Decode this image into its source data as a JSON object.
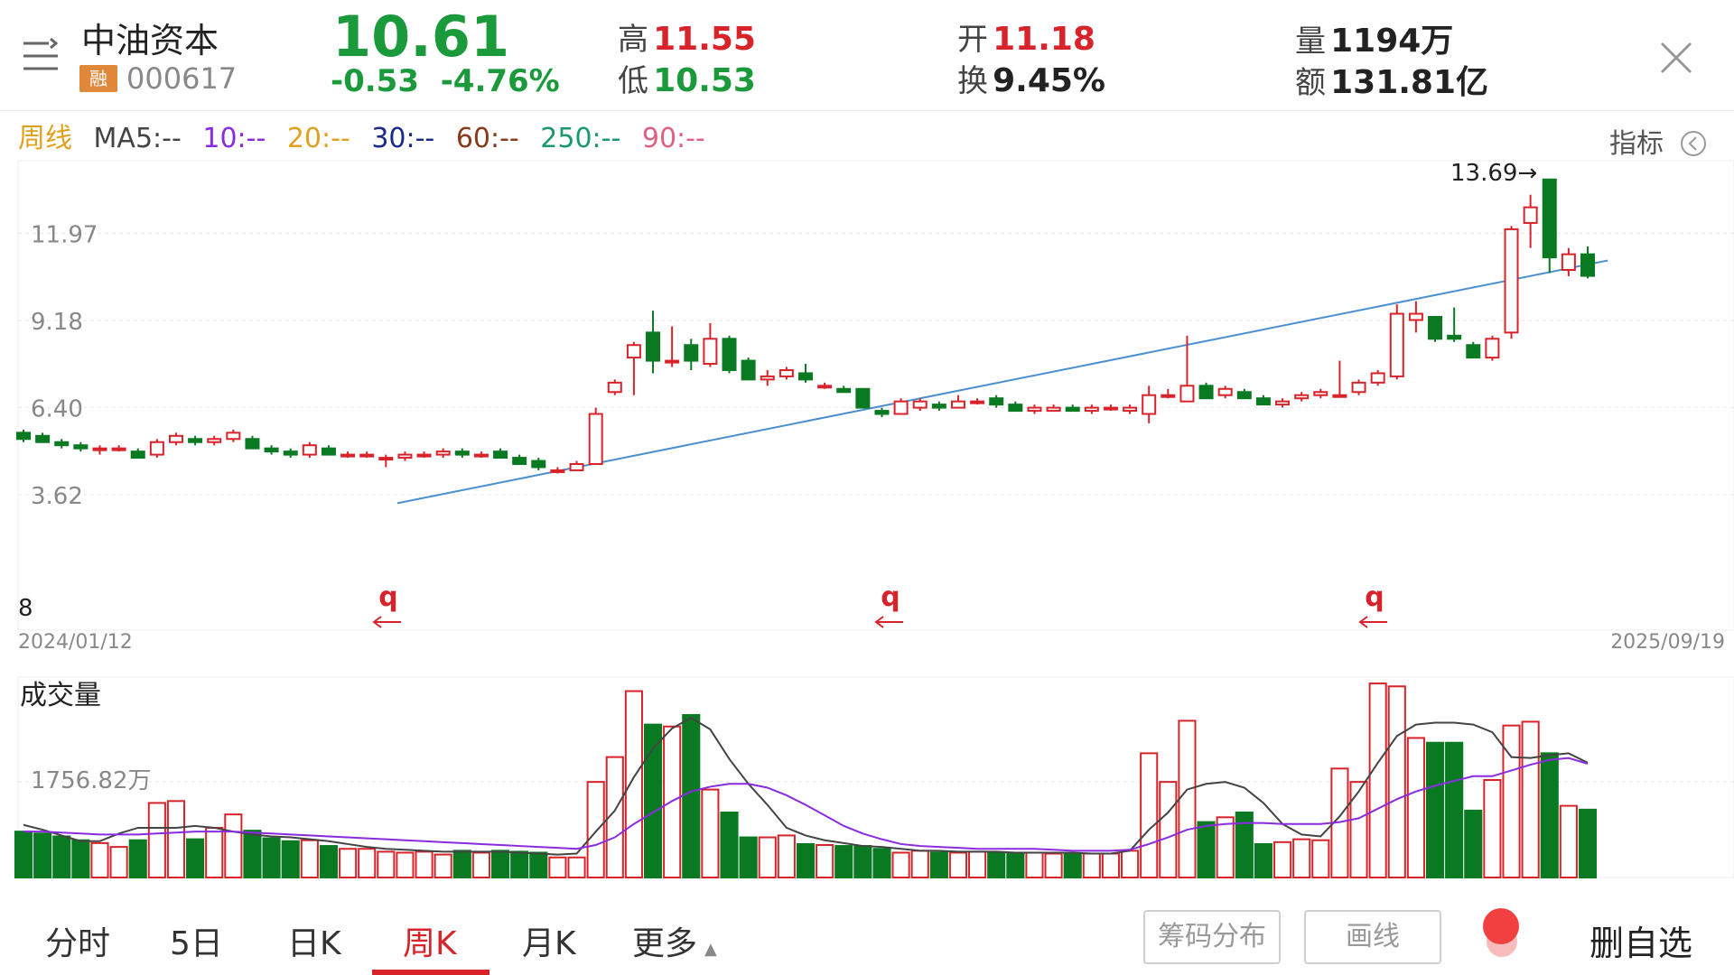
{
  "header": {
    "name": "中油资本",
    "margin_tag": "融",
    "code": "000617",
    "price": "10.61",
    "change": "-0.53",
    "change_pct": "-4.76%",
    "high_label": "高",
    "high": "11.55",
    "low_label": "低",
    "low": "10.53",
    "open_label": "开",
    "open": "11.18",
    "turnover_label": "换",
    "turnover": "9.45%",
    "volume_label": "量",
    "volume": "1194万",
    "amount_label": "额",
    "amount": "131.81亿"
  },
  "ma_bar": {
    "period": "周线",
    "ma5": "MA5:--",
    "ma10": "10:--",
    "ma20": "20:--",
    "ma30": "30:--",
    "ma60": "60:--",
    "ma250": "250:--",
    "ma90": "90:--",
    "indicator": "指标"
  },
  "colors": {
    "up": "#d8232a",
    "down": "#0a7a22",
    "trendline": "#4a8fd0",
    "ma5": "#444444",
    "ma10": "#8a2be2",
    "ma20": "#e0a020",
    "ma30": "#1a2a8a",
    "ma60": "#8a3a1a",
    "ma250": "#1a9a6a",
    "ma90": "#e06080"
  },
  "chart_data": {
    "type": "candlestick",
    "y_ticks": [
      "14.75",
      "11.97",
      "9.18",
      "6.40",
      "3.62"
    ],
    "ylim": [
      3.62,
      14.75
    ],
    "start_date": "2024/01/12",
    "end_date": "2025/09/19",
    "max_label": "13.69",
    "markers": [
      "q",
      "q",
      "q"
    ],
    "left_edge_label": "8",
    "candles": [
      [
        5.6,
        5.4,
        5.7,
        5.3
      ],
      [
        5.5,
        5.3,
        5.6,
        5.3
      ],
      [
        5.3,
        5.2,
        5.4,
        5.1
      ],
      [
        5.2,
        5.1,
        5.3,
        5.0
      ],
      [
        5.1,
        5.1,
        5.2,
        4.9
      ],
      [
        5.1,
        5.1,
        5.2,
        5.0
      ],
      [
        5.0,
        4.8,
        5.1,
        4.8
      ],
      [
        4.9,
        5.3,
        5.4,
        4.8
      ],
      [
        5.3,
        5.5,
        5.6,
        5.2
      ],
      [
        5.4,
        5.3,
        5.5,
        5.2
      ],
      [
        5.3,
        5.4,
        5.5,
        5.2
      ],
      [
        5.4,
        5.6,
        5.7,
        5.3
      ],
      [
        5.4,
        5.1,
        5.5,
        5.1
      ],
      [
        5.1,
        5.0,
        5.2,
        4.9
      ],
      [
        5.0,
        4.9,
        5.1,
        4.8
      ],
      [
        4.9,
        5.2,
        5.3,
        4.8
      ],
      [
        5.1,
        4.9,
        5.2,
        4.9
      ],
      [
        4.9,
        4.9,
        5.0,
        4.8
      ],
      [
        4.9,
        4.9,
        5.0,
        4.8
      ],
      [
        4.8,
        4.8,
        4.9,
        4.5
      ],
      [
        4.8,
        4.9,
        5.0,
        4.7
      ],
      [
        4.9,
        4.9,
        5.0,
        4.8
      ],
      [
        4.9,
        5.0,
        5.1,
        4.8
      ],
      [
        5.0,
        4.9,
        5.1,
        4.8
      ],
      [
        4.9,
        4.9,
        5.0,
        4.8
      ],
      [
        5.0,
        4.8,
        5.1,
        4.8
      ],
      [
        4.8,
        4.6,
        4.9,
        4.6
      ],
      [
        4.7,
        4.5,
        4.8,
        4.4
      ],
      [
        4.4,
        4.4,
        4.5,
        4.3
      ],
      [
        4.4,
        4.6,
        4.7,
        4.4
      ],
      [
        4.6,
        6.2,
        6.4,
        4.6
      ],
      [
        6.9,
        7.2,
        7.3,
        6.8
      ],
      [
        8.0,
        8.4,
        8.5,
        6.8
      ],
      [
        8.8,
        7.9,
        9.5,
        7.5
      ],
      [
        7.9,
        7.9,
        9.0,
        7.7
      ],
      [
        8.4,
        7.9,
        8.6,
        7.6
      ],
      [
        7.8,
        8.6,
        9.1,
        7.7
      ],
      [
        8.6,
        7.6,
        8.7,
        7.5
      ],
      [
        7.9,
        7.3,
        8.0,
        7.3
      ],
      [
        7.3,
        7.4,
        7.6,
        7.1
      ],
      [
        7.4,
        7.6,
        7.7,
        7.3
      ],
      [
        7.5,
        7.3,
        7.8,
        7.2
      ],
      [
        7.1,
        7.1,
        7.2,
        7.0
      ],
      [
        7.0,
        6.9,
        7.1,
        6.9
      ],
      [
        7.0,
        6.4,
        7.0,
        6.4
      ],
      [
        6.3,
        6.2,
        6.4,
        6.1
      ],
      [
        6.2,
        6.6,
        6.7,
        6.2
      ],
      [
        6.4,
        6.6,
        6.7,
        6.3
      ],
      [
        6.5,
        6.4,
        6.6,
        6.3
      ],
      [
        6.4,
        6.6,
        6.8,
        6.4
      ],
      [
        6.6,
        6.6,
        6.7,
        6.5
      ],
      [
        6.7,
        6.5,
        6.8,
        6.4
      ],
      [
        6.5,
        6.3,
        6.6,
        6.3
      ],
      [
        6.3,
        6.4,
        6.5,
        6.2
      ],
      [
        6.3,
        6.4,
        6.5,
        6.3
      ],
      [
        6.4,
        6.3,
        6.5,
        6.3
      ],
      [
        6.3,
        6.4,
        6.5,
        6.2
      ],
      [
        6.4,
        6.4,
        6.5,
        6.3
      ],
      [
        6.3,
        6.4,
        6.5,
        6.2
      ],
      [
        6.2,
        6.8,
        7.1,
        5.9
      ],
      [
        6.8,
        6.8,
        7.0,
        6.7
      ],
      [
        6.6,
        7.1,
        8.7,
        6.6
      ],
      [
        7.1,
        6.7,
        7.2,
        6.7
      ],
      [
        6.8,
        7.0,
        7.1,
        6.7
      ],
      [
        6.9,
        6.7,
        7.0,
        6.7
      ],
      [
        6.7,
        6.5,
        6.8,
        6.5
      ],
      [
        6.5,
        6.6,
        6.7,
        6.4
      ],
      [
        6.7,
        6.8,
        6.9,
        6.6
      ],
      [
        6.8,
        6.9,
        7.0,
        6.7
      ],
      [
        6.8,
        6.8,
        7.9,
        6.8
      ],
      [
        6.9,
        7.2,
        7.3,
        6.8
      ],
      [
        7.2,
        7.5,
        7.6,
        7.1
      ],
      [
        7.4,
        9.4,
        9.7,
        7.3
      ],
      [
        9.2,
        9.4,
        9.8,
        8.8
      ],
      [
        9.3,
        8.6,
        9.3,
        8.5
      ],
      [
        8.7,
        8.6,
        9.6,
        8.5
      ],
      [
        8.4,
        8.0,
        8.5,
        8.0
      ],
      [
        8.0,
        8.6,
        8.7,
        7.9
      ],
      [
        8.8,
        12.1,
        12.2,
        8.6
      ],
      [
        12.3,
        12.8,
        13.2,
        11.5
      ],
      [
        13.69,
        11.2,
        13.7,
        10.7
      ],
      [
        10.8,
        11.3,
        11.5,
        10.6
      ],
      [
        11.3,
        10.61,
        11.55,
        10.53
      ]
    ],
    "volume_title": "成交量",
    "volume_tick": "1756.82万",
    "volumes": [
      480,
      460,
      430,
      390,
      360,
      320,
      390,
      780,
      800,
      400,
      520,
      660,
      490,
      410,
      380,
      390,
      330,
      300,
      300,
      270,
      260,
      270,
      240,
      280,
      260,
      280,
      270,
      260,
      210,
      210,
      1000,
      1260,
      1950,
      1600,
      1580,
      1700,
      920,
      680,
      420,
      420,
      440,
      350,
      340,
      330,
      330,
      300,
      260,
      280,
      260,
      260,
      270,
      260,
      260,
      260,
      250,
      250,
      250,
      250,
      280,
      1300,
      1000,
      1640,
      580,
      630,
      680,
      350,
      370,
      400,
      390,
      1140,
      1000,
      2030,
      2000,
      1460,
      1410,
      1410,
      700,
      1020,
      1590,
      1630,
      1300,
      750,
      710
    ],
    "vol_ma_a": [
      550,
      500,
      440,
      380,
      380,
      460,
      520,
      520,
      520,
      540,
      520,
      480,
      450,
      430,
      420,
      400,
      380,
      350,
      320,
      300,
      290,
      280,
      270,
      270,
      270,
      270,
      260,
      250,
      240,
      250,
      480,
      700,
      1050,
      1350,
      1560,
      1670,
      1550,
      1240,
      980,
      760,
      520,
      440,
      390,
      360,
      330,
      320,
      300,
      280,
      280,
      270,
      270,
      270,
      260,
      260,
      260,
      260,
      250,
      250,
      280,
      500,
      680,
      920,
      980,
      1000,
      940,
      780,
      560,
      450,
      430,
      640,
      900,
      1200,
      1480,
      1600,
      1620,
      1620,
      1600,
      1520,
      1260,
      1250,
      1280,
      1300,
      1200
    ],
    "vol_ma_b": [
      480,
      480,
      470,
      460,
      450,
      450,
      450,
      460,
      470,
      480,
      480,
      480,
      470,
      460,
      450,
      440,
      430,
      420,
      410,
      400,
      390,
      380,
      370,
      360,
      350,
      340,
      330,
      320,
      310,
      300,
      340,
      420,
      560,
      680,
      800,
      900,
      950,
      980,
      980,
      940,
      860,
      760,
      650,
      540,
      460,
      400,
      350,
      330,
      320,
      310,
      300,
      300,
      300,
      300,
      290,
      280,
      280,
      280,
      290,
      350,
      420,
      500,
      540,
      560,
      570,
      570,
      560,
      560,
      560,
      580,
      620,
      720,
      820,
      900,
      960,
      1010,
      1060,
      1060,
      1120,
      1180,
      1230,
      1250,
      1190
    ]
  },
  "tabs": {
    "fenshi": "分时",
    "five_day": "5日",
    "daily": "日K",
    "weekly": "周K",
    "monthly": "月K",
    "more": "更多"
  },
  "actions": {
    "chip": "筹码分布",
    "draw": "画线",
    "delete": "删自选"
  }
}
